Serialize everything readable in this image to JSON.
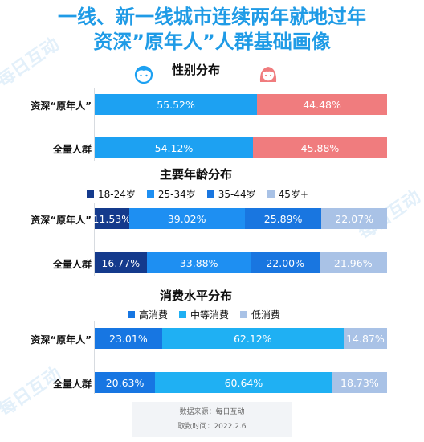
{
  "header": {
    "title_line1": "一线、新一线城市连续两年就地过年",
    "title_line2": "资深”原年人”人群基础画像"
  },
  "sections": {
    "gender": {
      "title": "性别分布"
    },
    "age": {
      "title": "主要年龄分布"
    },
    "spending": {
      "title": "消费水平分布"
    }
  },
  "footer": {
    "source": "数据来源：每日互动",
    "date": "取数时间：2022.2.6"
  },
  "watermark": {
    "text": "每日互动"
  },
  "chart_data": [
    {
      "type": "bar",
      "title": "性别分布",
      "orientation": "horizontal-stacked-100",
      "categories": [
        "资深“原年人”",
        "全量人群"
      ],
      "series": [
        {
          "name": "",
          "values": [
            55.52,
            54.12
          ],
          "labels": [
            "55.52%",
            "54.12%"
          ],
          "color": "#1da1f2"
        },
        {
          "name": "",
          "values": [
            44.48,
            45.88
          ],
          "labels": [
            "44.48%",
            "45.88%"
          ],
          "color": "#f07c7e"
        }
      ],
      "legend_icons": [
        "male-face-icon",
        "female-face-icon"
      ],
      "xlim": [
        0,
        100
      ]
    },
    {
      "type": "bar",
      "title": "主要年龄分布",
      "orientation": "horizontal-stacked-100",
      "categories": [
        "资深“原年人”",
        "全量人群"
      ],
      "series": [
        {
          "name": "18-24岁",
          "values": [
            11.53,
            16.77
          ],
          "labels": [
            "11.53%",
            "16.77%"
          ],
          "color": "#143a8c"
        },
        {
          "name": "25-34岁",
          "values": [
            39.02,
            33.88
          ],
          "labels": [
            "39.02%",
            "33.88%"
          ],
          "color": "#1e8ff2"
        },
        {
          "name": "35-44岁",
          "values": [
            25.89,
            22.0
          ],
          "labels": [
            "25.89%",
            "22.00%"
          ],
          "color": "#1976e0"
        },
        {
          "name": "45岁+",
          "values": [
            22.07,
            21.96
          ],
          "labels": [
            "22.07%",
            "21.96%"
          ],
          "color": "#a9c2e6"
        }
      ],
      "legend_position": "top",
      "xlim": [
        0,
        100
      ]
    },
    {
      "type": "bar",
      "title": "消费水平分布",
      "orientation": "horizontal-stacked-100",
      "categories": [
        "资深“原年人”",
        "全量人群"
      ],
      "series": [
        {
          "name": "高消费",
          "values": [
            23.01,
            20.63
          ],
          "labels": [
            "23.01%",
            "20.63%"
          ],
          "color": "#1776e2"
        },
        {
          "name": "中等消费",
          "values": [
            62.12,
            60.64
          ],
          "labels": [
            "62.12%",
            "60.64%"
          ],
          "color": "#1fb0f3"
        },
        {
          "name": "低消费",
          "values": [
            14.87,
            18.73
          ],
          "labels": [
            "14.87%",
            "18.73%"
          ],
          "color": "#a9c2e6"
        }
      ],
      "legend_position": "top",
      "xlim": [
        0,
        100
      ]
    }
  ]
}
